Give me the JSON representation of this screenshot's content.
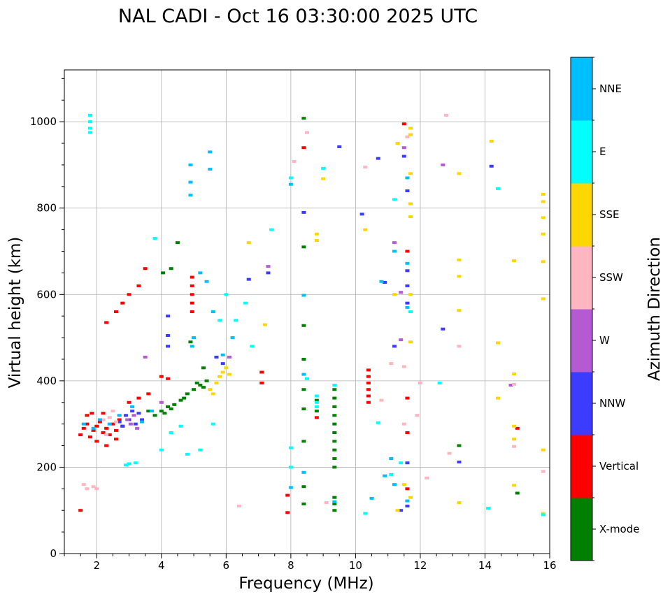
{
  "chart_data": {
    "type": "scatter",
    "title": "NAL CADI - Oct 16 03:30:00 2025 UTC",
    "xlabel": "Frequency (MHz)",
    "ylabel": "Virtual height (km)",
    "xlim": [
      1,
      16
    ],
    "ylim": [
      0,
      1120
    ],
    "xticks": [
      2,
      4,
      6,
      8,
      10,
      12,
      14,
      16
    ],
    "yticks": [
      0,
      200,
      400,
      600,
      800,
      1000
    ],
    "grid": true,
    "colorbar": {
      "label": "Azimuth Direction",
      "categories": [
        {
          "name": "X-mode",
          "color": "#008000"
        },
        {
          "name": "Vertical",
          "color": "#ff0000"
        },
        {
          "name": "NNW",
          "color": "#3c3cff"
        },
        {
          "name": "W",
          "color": "#b45ad2"
        },
        {
          "name": "SSW",
          "color": "#ffb6c1"
        },
        {
          "name": "SSE",
          "color": "#ffd700"
        },
        {
          "name": "E",
          "color": "#00ffff"
        },
        {
          "name": "NNE",
          "color": "#00bfff"
        }
      ]
    },
    "series": [
      {
        "name": "X-mode",
        "points": [
          [
            3.6,
            330
          ],
          [
            3.8,
            320
          ],
          [
            4.0,
            330
          ],
          [
            4.2,
            340
          ],
          [
            4.4,
            345
          ],
          [
            4.6,
            355
          ],
          [
            4.8,
            370
          ],
          [
            5.0,
            380
          ],
          [
            5.2,
            390
          ],
          [
            5.4,
            400
          ],
          [
            4.1,
            325
          ],
          [
            4.3,
            335
          ],
          [
            4.7,
            360
          ],
          [
            5.1,
            395
          ],
          [
            5.3,
            385
          ],
          [
            4.05,
            650
          ],
          [
            4.3,
            660
          ],
          [
            4.5,
            720
          ],
          [
            4.9,
            490
          ],
          [
            5.3,
            430
          ],
          [
            8.4,
            1008
          ],
          [
            8.4,
            710
          ],
          [
            8.4,
            528
          ],
          [
            8.4,
            450
          ],
          [
            8.4,
            380
          ],
          [
            8.4,
            335
          ],
          [
            8.4,
            260
          ],
          [
            8.4,
            155
          ],
          [
            8.4,
            115
          ],
          [
            8.8,
            355
          ],
          [
            8.8,
            330
          ],
          [
            9.35,
            380
          ],
          [
            9.35,
            360
          ],
          [
            9.35,
            340
          ],
          [
            9.35,
            320
          ],
          [
            9.35,
            300
          ],
          [
            9.35,
            280
          ],
          [
            9.35,
            260
          ],
          [
            9.35,
            240
          ],
          [
            9.35,
            220
          ],
          [
            9.35,
            200
          ],
          [
            9.35,
            130
          ],
          [
            9.35,
            115
          ],
          [
            9.35,
            100
          ],
          [
            13.2,
            250
          ],
          [
            15.0,
            140
          ]
        ]
      },
      {
        "name": "Vertical",
        "points": [
          [
            1.5,
            275
          ],
          [
            1.6,
            290
          ],
          [
            1.7,
            300
          ],
          [
            1.8,
            270
          ],
          [
            1.9,
            285
          ],
          [
            2.0,
            295
          ],
          [
            2.1,
            305
          ],
          [
            2.2,
            280
          ],
          [
            2.3,
            290
          ],
          [
            2.4,
            275
          ],
          [
            2.5,
            300
          ],
          [
            2.6,
            285
          ],
          [
            2.7,
            310
          ],
          [
            2.8,
            295
          ],
          [
            1.7,
            320
          ],
          [
            2.0,
            260
          ],
          [
            2.3,
            250
          ],
          [
            1.85,
            325
          ],
          [
            2.2,
            325
          ],
          [
            2.6,
            265
          ],
          [
            3.0,
            350
          ],
          [
            3.3,
            360
          ],
          [
            3.6,
            370
          ],
          [
            4.0,
            410
          ],
          [
            4.2,
            405
          ],
          [
            3.5,
            660
          ],
          [
            3.3,
            620
          ],
          [
            3.0,
            600
          ],
          [
            2.8,
            580
          ],
          [
            2.6,
            560
          ],
          [
            2.3,
            535
          ],
          [
            4.95,
            640
          ],
          [
            4.95,
            620
          ],
          [
            4.95,
            600
          ],
          [
            4.95,
            580
          ],
          [
            4.95,
            560
          ],
          [
            7.1,
            420
          ],
          [
            7.1,
            395
          ],
          [
            8.4,
            940
          ],
          [
            7.9,
            135
          ],
          [
            7.9,
            95
          ],
          [
            10.4,
            425
          ],
          [
            10.4,
            410
          ],
          [
            10.4,
            395
          ],
          [
            10.4,
            380
          ],
          [
            10.4,
            365
          ],
          [
            10.4,
            350
          ],
          [
            11.6,
            700
          ],
          [
            11.6,
            360
          ],
          [
            11.6,
            150
          ],
          [
            11.6,
            280
          ],
          [
            15.0,
            290
          ],
          [
            11.5,
            995
          ],
          [
            8.8,
            315
          ],
          [
            1.5,
            100
          ]
        ]
      },
      {
        "name": "NNW",
        "points": [
          [
            2.9,
            320
          ],
          [
            3.0,
            310
          ],
          [
            3.1,
            330
          ],
          [
            3.2,
            300
          ],
          [
            2.8,
            295
          ],
          [
            3.3,
            325
          ],
          [
            2.7,
            305
          ],
          [
            3.4,
            310
          ],
          [
            4.2,
            550
          ],
          [
            4.2,
            505
          ],
          [
            4.2,
            480
          ],
          [
            5.7,
            455
          ],
          [
            5.9,
            440
          ],
          [
            6.7,
            635
          ],
          [
            7.3,
            650
          ],
          [
            9.5,
            942
          ],
          [
            10.2,
            786
          ],
          [
            10.7,
            915
          ],
          [
            10.9,
            628
          ],
          [
            11.2,
            480
          ],
          [
            11.6,
            840
          ],
          [
            11.6,
            655
          ],
          [
            11.6,
            620
          ],
          [
            11.6,
            580
          ],
          [
            11.6,
            210
          ],
          [
            11.6,
            110
          ],
          [
            11.4,
            100
          ],
          [
            12.7,
            520
          ],
          [
            13.2,
            212
          ],
          [
            14.2,
            897
          ],
          [
            11.5,
            920
          ],
          [
            8.4,
            790
          ]
        ]
      },
      {
        "name": "W",
        "points": [
          [
            3.05,
            300
          ],
          [
            3.15,
            320
          ],
          [
            3.25,
            290
          ],
          [
            2.95,
            310
          ],
          [
            3.5,
            455
          ],
          [
            4.0,
            350
          ],
          [
            6.1,
            455
          ],
          [
            7.3,
            665
          ],
          [
            11.2,
            720
          ],
          [
            11.4,
            605
          ],
          [
            11.5,
            940
          ],
          [
            12.7,
            900
          ],
          [
            14.8,
            390
          ],
          [
            11.4,
            495
          ]
        ]
      },
      {
        "name": "SSW",
        "points": [
          [
            1.6,
            160
          ],
          [
            1.7,
            150
          ],
          [
            1.9,
            155
          ],
          [
            2.0,
            150
          ],
          [
            2.2,
            310
          ],
          [
            2.4,
            315
          ],
          [
            2.6,
            305
          ],
          [
            2.5,
            330
          ],
          [
            2.7,
            320
          ],
          [
            2.3,
            275
          ],
          [
            6.4,
            110
          ],
          [
            8.5,
            975
          ],
          [
            9.1,
            118
          ],
          [
            10.3,
            895
          ],
          [
            10.8,
            355
          ],
          [
            12.0,
            395
          ],
          [
            12.2,
            175
          ],
          [
            12.9,
            232
          ],
          [
            13.2,
            480
          ],
          [
            14.9,
            392
          ],
          [
            14.9,
            248
          ],
          [
            15.8,
            190
          ],
          [
            11.6,
            965
          ],
          [
            8.1,
            908
          ],
          [
            11.5,
            433
          ],
          [
            11.9,
            320
          ],
          [
            11.5,
            300
          ],
          [
            11.1,
            440
          ],
          [
            12.8,
            1015
          ]
        ]
      },
      {
        "name": "SSE",
        "points": [
          [
            5.5,
            380
          ],
          [
            5.7,
            395
          ],
          [
            5.8,
            410
          ],
          [
            5.9,
            420
          ],
          [
            6.0,
            430
          ],
          [
            5.6,
            370
          ],
          [
            6.1,
            415
          ],
          [
            7.2,
            530
          ],
          [
            6.7,
            720
          ],
          [
            9.0,
            868
          ],
          [
            10.3,
            750
          ],
          [
            11.2,
            600
          ],
          [
            11.3,
            950
          ],
          [
            11.7,
            985
          ],
          [
            11.7,
            970
          ],
          [
            11.7,
            880
          ],
          [
            11.7,
            810
          ],
          [
            11.7,
            780
          ],
          [
            11.7,
            600
          ],
          [
            11.7,
            490
          ],
          [
            11.7,
            130
          ],
          [
            11.5,
            160
          ],
          [
            11.3,
            100
          ],
          [
            13.2,
            880
          ],
          [
            13.2,
            680
          ],
          [
            13.2,
            642
          ],
          [
            13.2,
            563
          ],
          [
            13.2,
            118
          ],
          [
            14.2,
            955
          ],
          [
            14.4,
            488
          ],
          [
            14.4,
            360
          ],
          [
            14.9,
            678
          ],
          [
            14.9,
            416
          ],
          [
            14.9,
            295
          ],
          [
            14.9,
            265
          ],
          [
            14.9,
            158
          ],
          [
            15.8,
            832
          ],
          [
            15.8,
            815
          ],
          [
            15.8,
            778
          ],
          [
            15.8,
            740
          ],
          [
            15.8,
            676
          ],
          [
            15.8,
            590
          ],
          [
            15.8,
            240
          ],
          [
            15.8,
            93
          ],
          [
            8.8,
            740
          ],
          [
            8.8,
            725
          ]
        ]
      },
      {
        "name": "E",
        "points": [
          [
            1.8,
            1015
          ],
          [
            1.8,
            1000
          ],
          [
            1.8,
            985
          ],
          [
            1.8,
            975
          ],
          [
            3.0,
            208
          ],
          [
            3.2,
            210
          ],
          [
            2.9,
            205
          ],
          [
            3.8,
            730
          ],
          [
            4.0,
            240
          ],
          [
            4.3,
            280
          ],
          [
            4.6,
            295
          ],
          [
            4.8,
            230
          ],
          [
            5.2,
            240
          ],
          [
            5.6,
            300
          ],
          [
            5.8,
            540
          ],
          [
            6.0,
            600
          ],
          [
            6.3,
            540
          ],
          [
            6.6,
            580
          ],
          [
            6.8,
            480
          ],
          [
            7.4,
            750
          ],
          [
            8.0,
            870
          ],
          [
            8.0,
            245
          ],
          [
            8.0,
            200
          ],
          [
            8.5,
            405
          ],
          [
            8.8,
            365
          ],
          [
            8.8,
            350
          ],
          [
            8.8,
            340
          ],
          [
            9.0,
            892
          ],
          [
            10.3,
            93
          ],
          [
            10.7,
            303
          ],
          [
            11.1,
            183
          ],
          [
            11.2,
            820
          ],
          [
            11.4,
            210
          ],
          [
            11.7,
            560
          ],
          [
            12.6,
            395
          ],
          [
            14.4,
            845
          ],
          [
            14.1,
            105
          ],
          [
            15.8,
            90
          ],
          [
            9.35,
            390
          ]
        ]
      },
      {
        "name": "NNE",
        "points": [
          [
            1.6,
            300
          ],
          [
            1.9,
            290
          ],
          [
            2.1,
            310
          ],
          [
            2.4,
            300
          ],
          [
            2.7,
            320
          ],
          [
            3.1,
            340
          ],
          [
            3.4,
            305
          ],
          [
            3.7,
            330
          ],
          [
            4.9,
            900
          ],
          [
            4.9,
            860
          ],
          [
            4.9,
            830
          ],
          [
            5.0,
            500
          ],
          [
            4.95,
            480
          ],
          [
            5.5,
            930
          ],
          [
            5.5,
            890
          ],
          [
            5.2,
            650
          ],
          [
            5.4,
            630
          ],
          [
            5.6,
            560
          ],
          [
            5.9,
            460
          ],
          [
            6.2,
            500
          ],
          [
            8.0,
            855
          ],
          [
            8.4,
            598
          ],
          [
            8.4,
            415
          ],
          [
            8.4,
            188
          ],
          [
            8.0,
            153
          ],
          [
            9.35,
            120
          ],
          [
            10.8,
            630
          ],
          [
            10.5,
            128
          ],
          [
            11.6,
            870
          ],
          [
            11.6,
            672
          ],
          [
            11.2,
            700
          ],
          [
            11.6,
            570
          ],
          [
            11.6,
            122
          ],
          [
            11.1,
            220
          ],
          [
            11.2,
            160
          ],
          [
            10.9,
            180
          ]
        ]
      }
    ]
  }
}
